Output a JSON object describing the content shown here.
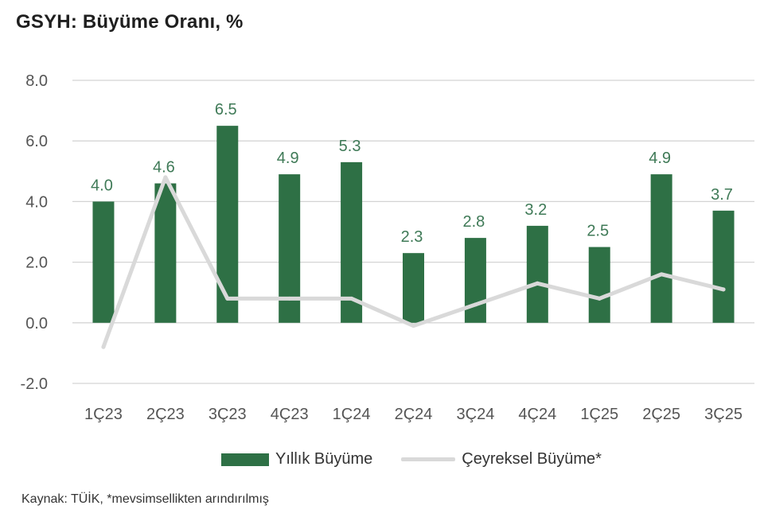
{
  "title": "GSYH: Büyüme Oranı, %",
  "source": "Kaynak: TÜİK, *mevsimsellikten arındırılmış",
  "colors": {
    "bar": "#2e7045",
    "line": "#d9d9d9",
    "grid": "#d4d4d4",
    "label": "#3f7a57"
  },
  "chart_data": {
    "type": "bar",
    "title": "GSYH: Büyüme Oranı, %",
    "categories": [
      "1Ç23",
      "2Ç23",
      "3Ç23",
      "4Ç23",
      "1Ç24",
      "2Ç24",
      "3Ç24",
      "4Ç24",
      "1Ç25",
      "2Ç25",
      "3Ç25"
    ],
    "yticks": [
      "8.0",
      "6.0",
      "4.0",
      "2.0",
      "0.0",
      "-2.0"
    ],
    "ylim": [
      -2,
      8
    ],
    "grid": true,
    "legend_position": "bottom",
    "series": [
      {
        "name": "Yıllık Büyüme",
        "type": "bar",
        "values": [
          4.0,
          4.6,
          6.5,
          4.9,
          5.3,
          2.3,
          2.8,
          3.2,
          2.5,
          4.9,
          3.7
        ],
        "labels": [
          "4.0",
          "4.6",
          "6.5",
          "4.9",
          "5.3",
          "2.3",
          "2.8",
          "3.2",
          "2.5",
          "4.9",
          "3.7"
        ]
      },
      {
        "name": "Çeyreksel Büyüme*",
        "type": "line",
        "values": [
          -0.8,
          4.8,
          0.8,
          0.8,
          0.8,
          -0.1,
          0.6,
          1.3,
          0.8,
          1.6,
          1.1
        ]
      }
    ]
  }
}
